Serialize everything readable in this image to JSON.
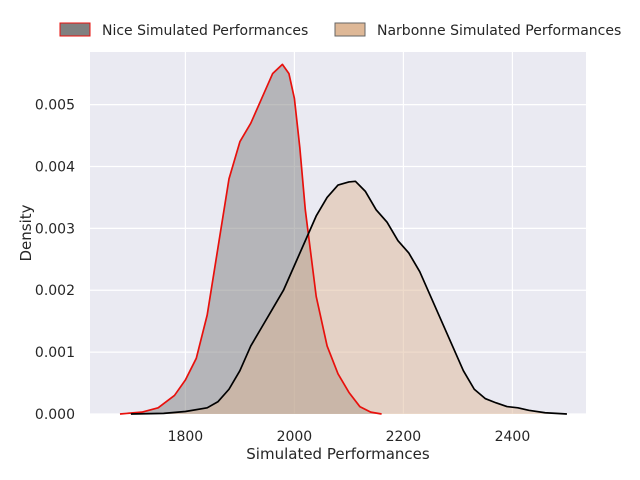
{
  "chart_data": {
    "type": "area",
    "xlabel": "Simulated Performances",
    "ylabel": "Density",
    "xlim": [
      1625,
      2535
    ],
    "ylim": [
      0,
      0.00585
    ],
    "x_ticks": [
      1800,
      2000,
      2200,
      2400
    ],
    "x_tick_labels": [
      "1800",
      "2000",
      "2200",
      "2400"
    ],
    "y_ticks": [
      0.0,
      0.001,
      0.002,
      0.003,
      0.004,
      0.005
    ],
    "y_tick_labels": [
      "0.000",
      "0.001",
      "0.002",
      "0.003",
      "0.004",
      "0.005"
    ],
    "grid": true,
    "legend_position": "top-center",
    "background_color": "#eaeaf2",
    "grid_color": "#ffffff",
    "series": [
      {
        "name": "Nice Simulated Performances",
        "fill_color": "#808080",
        "fill_opacity": 0.5,
        "line_color": "#e8100c",
        "points": [
          [
            1680,
            0.0
          ],
          [
            1720,
            3e-05
          ],
          [
            1750,
            0.0001
          ],
          [
            1780,
            0.0003
          ],
          [
            1800,
            0.00055
          ],
          [
            1820,
            0.0009
          ],
          [
            1840,
            0.0016
          ],
          [
            1860,
            0.0027
          ],
          [
            1880,
            0.0038
          ],
          [
            1900,
            0.0044
          ],
          [
            1920,
            0.0047
          ],
          [
            1940,
            0.0051
          ],
          [
            1960,
            0.0055
          ],
          [
            1978,
            0.00565
          ],
          [
            1990,
            0.0055
          ],
          [
            2000,
            0.0051
          ],
          [
            2010,
            0.0043
          ],
          [
            2020,
            0.0033
          ],
          [
            2040,
            0.0019
          ],
          [
            2060,
            0.0011
          ],
          [
            2080,
            0.00065
          ],
          [
            2100,
            0.00035
          ],
          [
            2120,
            0.00012
          ],
          [
            2140,
            3e-05
          ],
          [
            2160,
            0.0
          ]
        ]
      },
      {
        "name": "Narbonne Simulated Performances",
        "fill_color": "#deb897",
        "fill_opacity": 0.5,
        "line_color": "#000000",
        "points": [
          [
            1700,
            0.0
          ],
          [
            1760,
            1e-05
          ],
          [
            1800,
            4e-05
          ],
          [
            1840,
            0.0001
          ],
          [
            1860,
            0.0002
          ],
          [
            1880,
            0.0004
          ],
          [
            1900,
            0.0007
          ],
          [
            1920,
            0.0011
          ],
          [
            1940,
            0.0014
          ],
          [
            1960,
            0.0017
          ],
          [
            1980,
            0.002
          ],
          [
            2000,
            0.0024
          ],
          [
            2020,
            0.0028
          ],
          [
            2040,
            0.0032
          ],
          [
            2060,
            0.0035
          ],
          [
            2080,
            0.0037
          ],
          [
            2100,
            0.00375
          ],
          [
            2112,
            0.00376
          ],
          [
            2130,
            0.0036
          ],
          [
            2150,
            0.0033
          ],
          [
            2170,
            0.0031
          ],
          [
            2190,
            0.0028
          ],
          [
            2210,
            0.0026
          ],
          [
            2230,
            0.0023
          ],
          [
            2250,
            0.0019
          ],
          [
            2270,
            0.0015
          ],
          [
            2290,
            0.0011
          ],
          [
            2310,
            0.0007
          ],
          [
            2330,
            0.0004
          ],
          [
            2350,
            0.00025
          ],
          [
            2370,
            0.00018
          ],
          [
            2390,
            0.00012
          ],
          [
            2410,
            0.0001
          ],
          [
            2430,
            6e-05
          ],
          [
            2460,
            2e-05
          ],
          [
            2500,
            0.0
          ]
        ]
      }
    ]
  }
}
